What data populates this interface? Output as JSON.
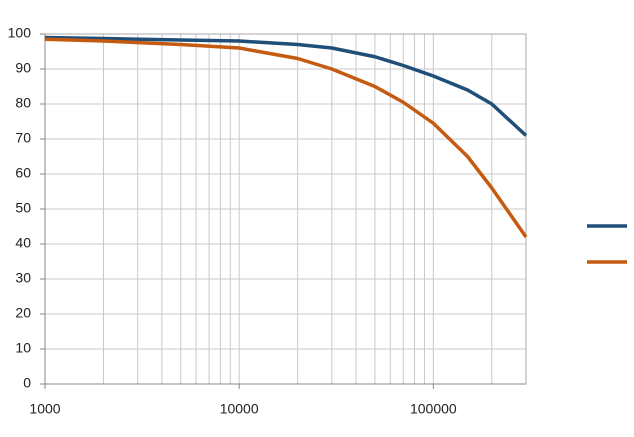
{
  "chart_data": {
    "type": "line",
    "x": [
      1000,
      2000,
      5000,
      10000,
      20000,
      30000,
      50000,
      70000,
      100000,
      150000,
      200000,
      300000
    ],
    "series": [
      {
        "color": "#1f4e79",
        "values": [
          99,
          98.7,
          98.3,
          98,
          97,
          96,
          93.5,
          91,
          88,
          84,
          80,
          71
        ]
      },
      {
        "color": "#c55a11",
        "values": [
          98.5,
          98,
          97,
          96,
          93,
          90,
          85,
          80.5,
          74.5,
          65,
          56,
          42
        ]
      }
    ],
    "xscale": "log",
    "xlim": [
      1000,
      300000
    ],
    "xticks": [
      1000,
      10000,
      100000
    ],
    "ylim": [
      0,
      100
    ],
    "yticks": [
      0,
      10,
      20,
      30,
      40,
      50,
      60,
      70,
      80,
      90,
      100
    ],
    "grid": true,
    "legend": "right"
  }
}
